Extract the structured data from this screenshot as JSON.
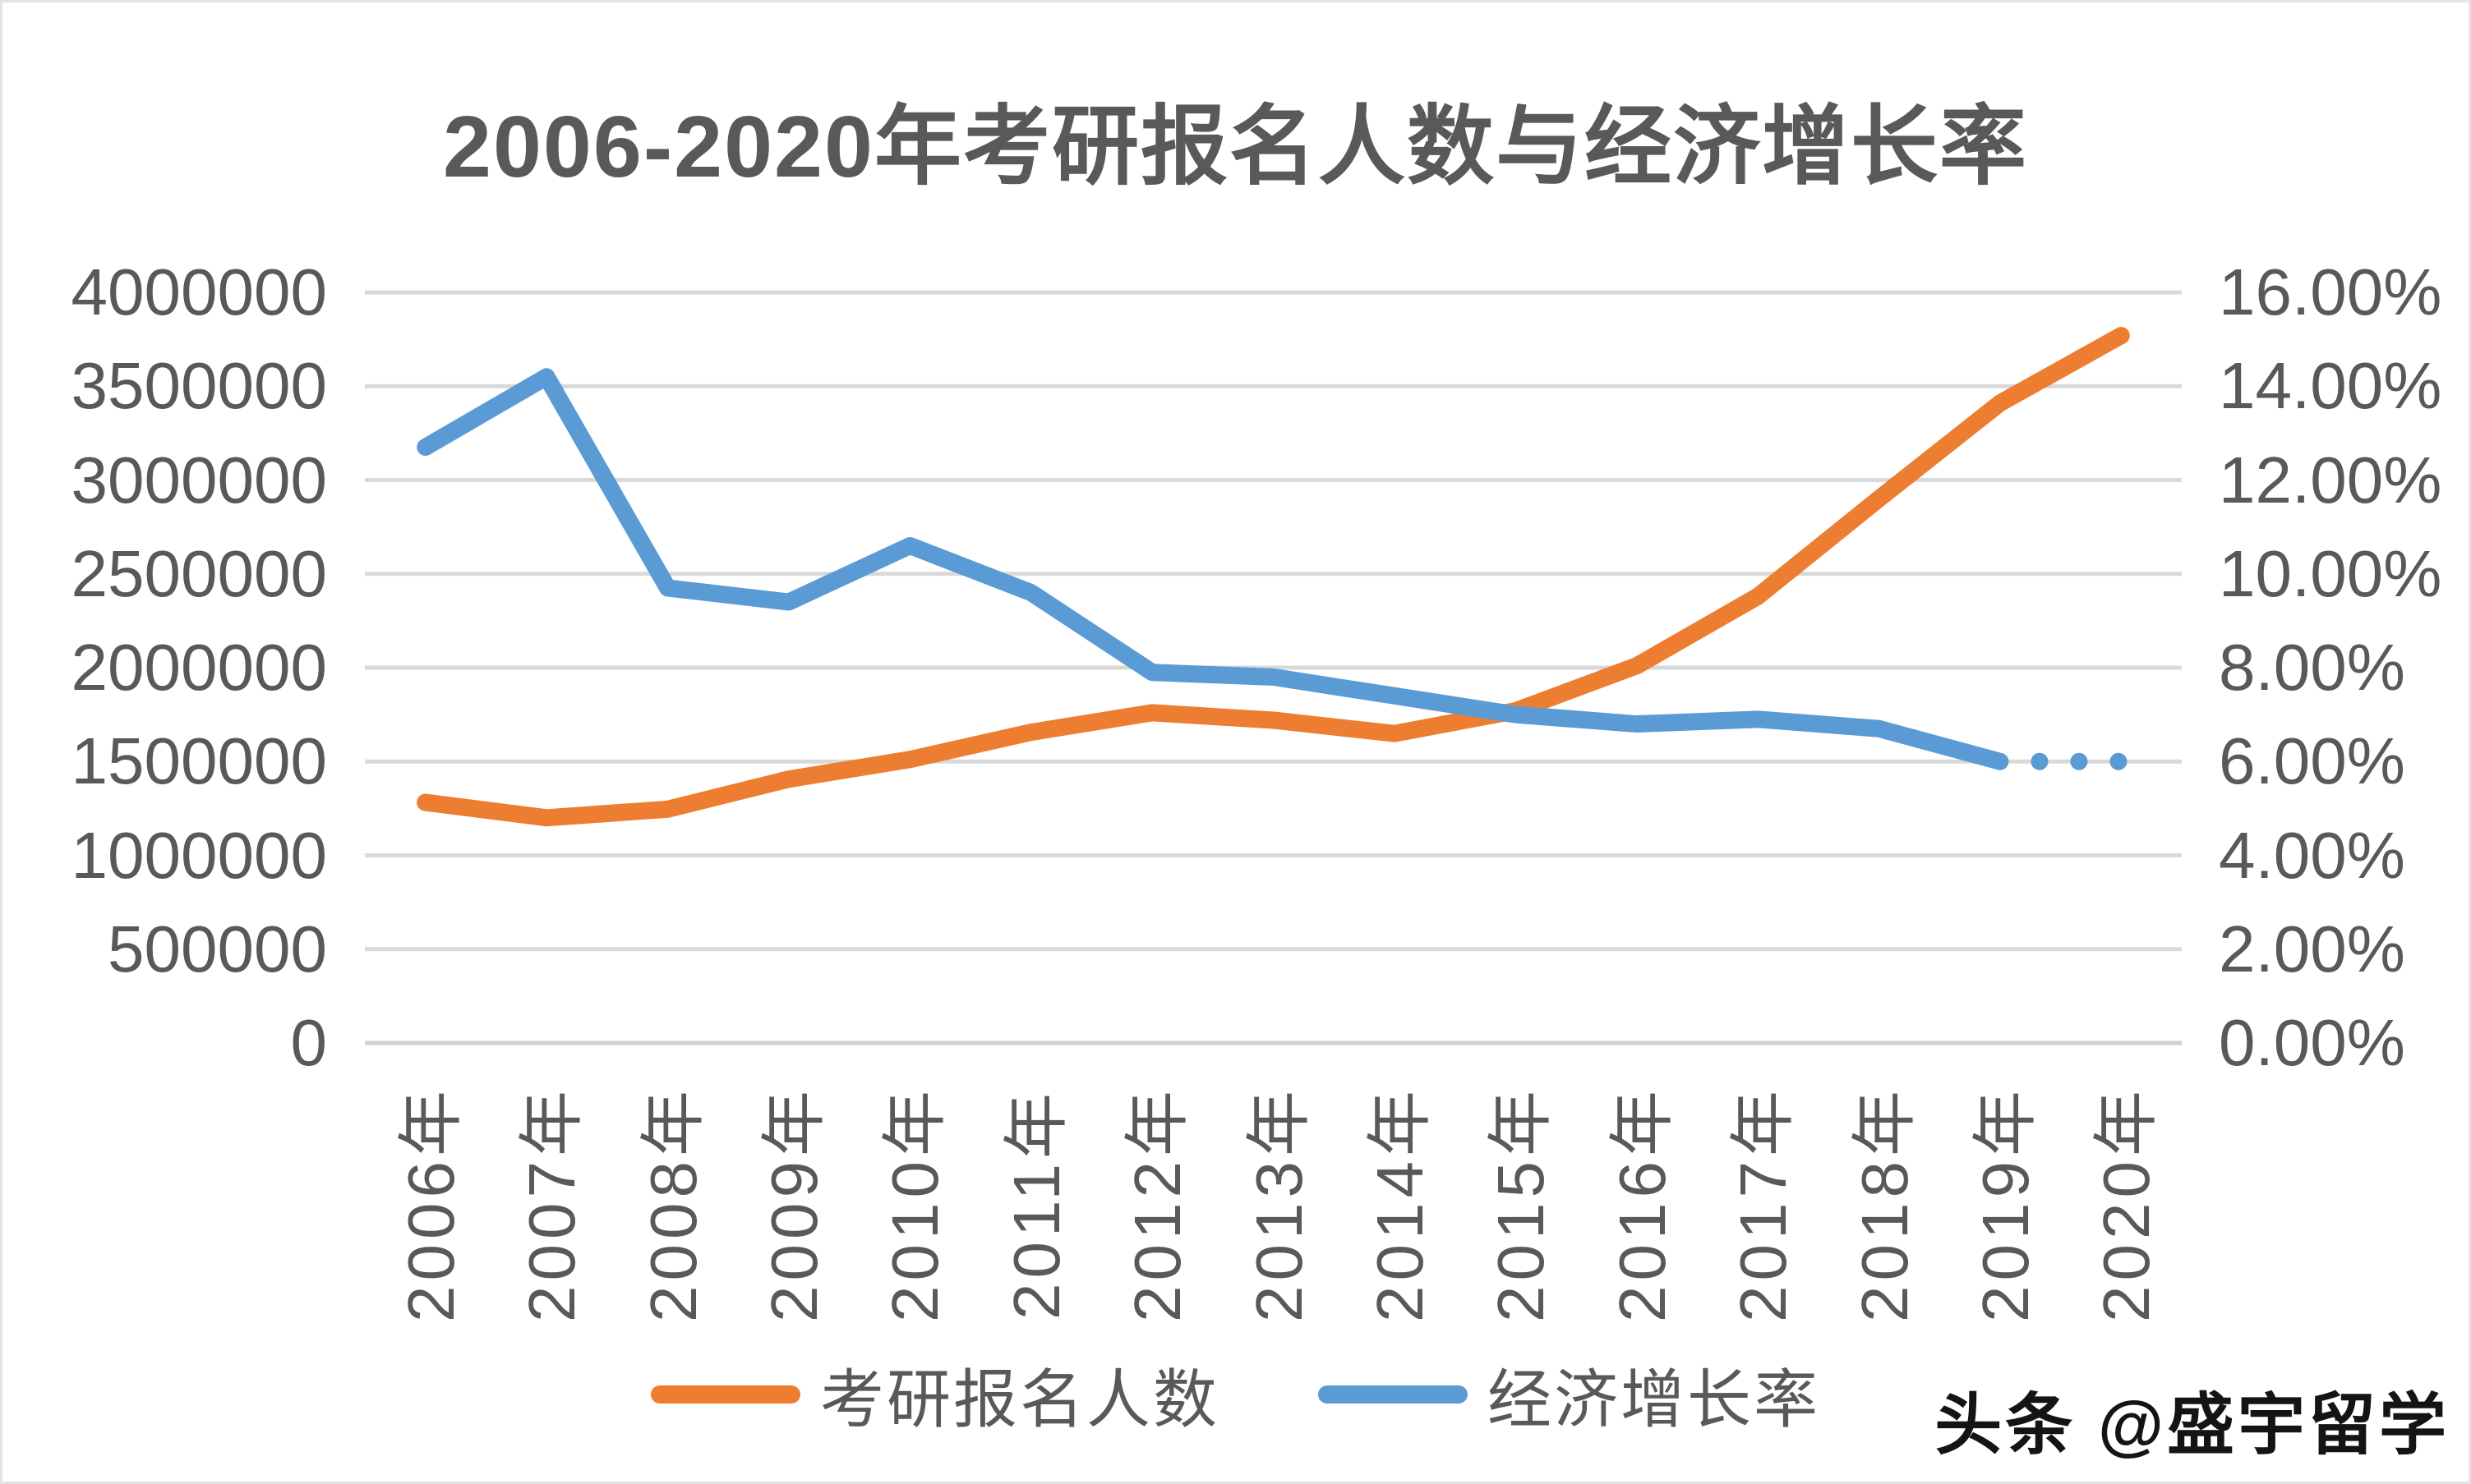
{
  "title": "2006-2020年考研报名人数与经济增长率",
  "watermark": "头条 @盛宇留学",
  "colors": {
    "applicants_line": "#ED7D31",
    "growth_line": "#5B9BD5",
    "gridline": "#D9D9D9",
    "baseline": "#CFCFCF",
    "text": "#595959"
  },
  "chart_data": {
    "type": "line",
    "title": "2006-2020年考研报名人数与经济增长率",
    "categories": [
      "2006年",
      "2007年",
      "2008年",
      "2009年",
      "2010年",
      "2011年",
      "2012年",
      "2013年",
      "2014年",
      "2015年",
      "2016年",
      "2017年",
      "2018年",
      "2019年",
      "2020年"
    ],
    "series": [
      {
        "name": "考研报名人数",
        "yaxis": "left",
        "color": "#ED7D31",
        "values": [
          1282000,
          1200000,
          1246000,
          1406000,
          1511000,
          1656000,
          1760000,
          1720000,
          1649000,
          1770000,
          2010000,
          2380000,
          2900000,
          3410000,
          3770000
        ]
      },
      {
        "name": "经济增长率",
        "yaxis": "right",
        "unit": "%",
        "color": "#5B9BD5",
        "values": [
          12.7,
          14.2,
          9.7,
          9.4,
          10.6,
          9.6,
          7.9,
          7.8,
          7.4,
          7.0,
          6.8,
          6.9,
          6.7,
          6.0,
          6.0
        ],
        "dashed_segment_from": "2019年",
        "dashed_segment_to": "2020年"
      }
    ],
    "left_axis": {
      "min": 0,
      "max": 4000000,
      "step": 500000,
      "labels": [
        "4000000",
        "3500000",
        "3000000",
        "2500000",
        "2000000",
        "1500000",
        "1000000",
        "500000",
        "0"
      ]
    },
    "right_axis": {
      "min": 0,
      "max": 16,
      "step": 2,
      "labels": [
        "16.00%",
        "14.00%",
        "12.00%",
        "10.00%",
        "8.00%",
        "6.00%",
        "4.00%",
        "2.00%",
        "0.00%"
      ]
    },
    "legend": {
      "position": "bottom",
      "entries": [
        "考研报名人数",
        "经济增长率"
      ]
    },
    "grid": true
  }
}
